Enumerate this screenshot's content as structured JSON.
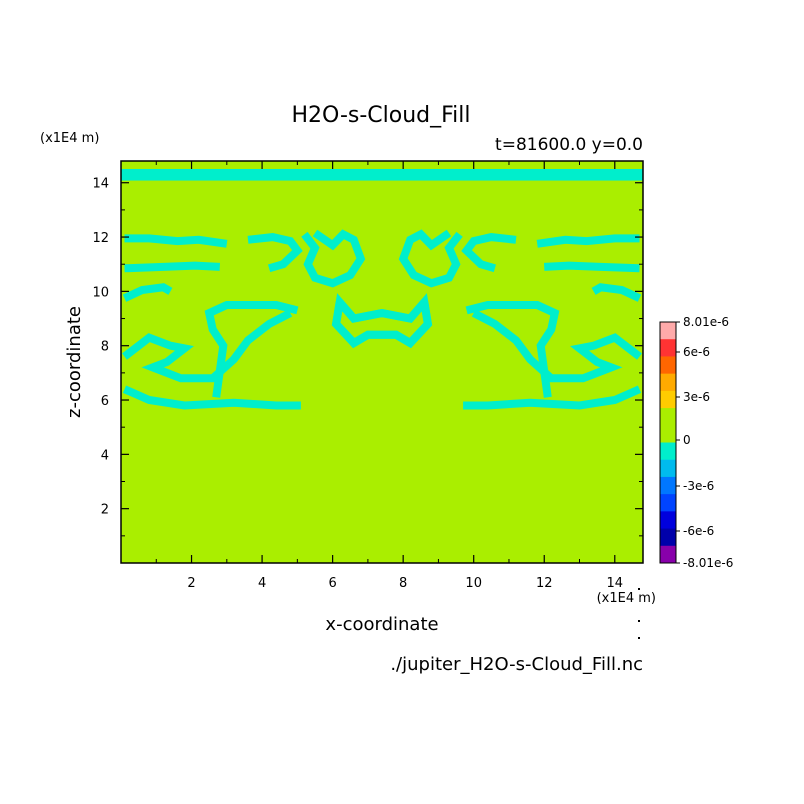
{
  "chart_data": {
    "type": "heatmap",
    "title": "H2O-s-Cloud_Fill",
    "subtitle": "t=81600.0 y=0.0",
    "xlabel": "x-coordinate",
    "ylabel": "z-coordinate",
    "x_unit_label": "(x1E4 m)",
    "y_unit_label": "(x1E4 m)",
    "source_label": "./jupiter_H2O-s-Cloud_Fill.nc",
    "xlim": [
      0,
      14.8
    ],
    "ylim": [
      0,
      14.8
    ],
    "x_ticks": [
      "2",
      "4",
      "6",
      "8",
      "10",
      "12",
      "14"
    ],
    "y_ticks": [
      "2",
      "4",
      "6",
      "8",
      "10",
      "12",
      "14"
    ],
    "field": {
      "background_value": 0,
      "negative_feature_value": -1.5e-06,
      "feature_band_top": [
        14.08,
        14.8
      ],
      "feature_paths": [
        [
          [
            0.1,
            11.95
          ],
          [
            0.8,
            11.95
          ],
          [
            1.6,
            11.85
          ],
          [
            2.2,
            11.9
          ],
          [
            3.0,
            11.75
          ]
        ],
        [
          [
            0.1,
            10.85
          ],
          [
            1.2,
            10.9
          ],
          [
            2.1,
            10.95
          ],
          [
            2.8,
            10.9
          ]
        ],
        [
          [
            0.1,
            9.75
          ],
          [
            0.6,
            10.05
          ],
          [
            1.2,
            10.15
          ],
          [
            1.4,
            10.0
          ]
        ],
        [
          [
            3.6,
            11.9
          ],
          [
            4.3,
            12.0
          ],
          [
            4.8,
            11.85
          ],
          [
            5.0,
            11.5
          ],
          [
            4.6,
            11.0
          ],
          [
            4.2,
            10.85
          ]
        ],
        [
          [
            5.2,
            12.1
          ],
          [
            5.5,
            11.6
          ],
          [
            5.3,
            11.0
          ],
          [
            5.5,
            10.5
          ],
          [
            6.0,
            10.3
          ],
          [
            6.5,
            10.6
          ],
          [
            6.8,
            11.2
          ],
          [
            6.6,
            11.9
          ],
          [
            6.3,
            12.1
          ],
          [
            6.0,
            11.7
          ],
          [
            5.5,
            12.15
          ]
        ],
        [
          [
            2.7,
            6.1
          ],
          [
            2.9,
            8.0
          ],
          [
            2.6,
            8.6
          ],
          [
            2.5,
            9.2
          ],
          [
            3.0,
            9.5
          ],
          [
            4.4,
            9.5
          ],
          [
            5.0,
            9.3
          ]
        ],
        [
          [
            0.1,
            6.4
          ],
          [
            0.8,
            6.0
          ],
          [
            1.8,
            5.8
          ],
          [
            3.2,
            5.9
          ],
          [
            4.4,
            5.8
          ],
          [
            5.1,
            5.8
          ]
        ],
        [
          [
            0.1,
            7.6
          ],
          [
            0.8,
            8.3
          ],
          [
            1.4,
            8.0
          ],
          [
            1.8,
            7.9
          ],
          [
            1.3,
            7.4
          ],
          [
            0.9,
            7.2
          ],
          [
            1.7,
            6.8
          ],
          [
            2.6,
            6.8
          ],
          [
            3.2,
            7.5
          ],
          [
            3.6,
            8.2
          ],
          [
            4.2,
            8.8
          ],
          [
            4.8,
            9.2
          ]
        ],
        [
          [
            6.2,
            9.6
          ],
          [
            6.1,
            8.8
          ],
          [
            6.6,
            8.1
          ],
          [
            7.0,
            8.4
          ],
          [
            7.8,
            8.4
          ],
          [
            8.2,
            8.1
          ],
          [
            8.7,
            8.8
          ],
          [
            8.6,
            9.6
          ],
          [
            8.2,
            9.0
          ],
          [
            7.4,
            9.2
          ],
          [
            6.6,
            9.0
          ],
          [
            6.2,
            9.6
          ]
        ]
      ]
    },
    "colorbar": {
      "tick_labels": [
        "8.01e-6",
        "6e-6",
        "3e-6",
        "0",
        "-3e-6",
        "-6e-6",
        "-8.01e-6"
      ],
      "levels": [
        {
          "color": "#ffaaaa"
        },
        {
          "color": "#ff3333"
        },
        {
          "color": "#ff6600"
        },
        {
          "color": "#ffaa00"
        },
        {
          "color": "#ffcc00"
        },
        {
          "color": "#aaee00"
        },
        {
          "color": "#aaee00"
        },
        {
          "color": "#00eecc"
        },
        {
          "color": "#00bbee"
        },
        {
          "color": "#0077ff"
        },
        {
          "color": "#0044ff"
        },
        {
          "color": "#0000dd"
        },
        {
          "color": "#0000aa"
        },
        {
          "color": "#8800aa"
        }
      ]
    }
  }
}
